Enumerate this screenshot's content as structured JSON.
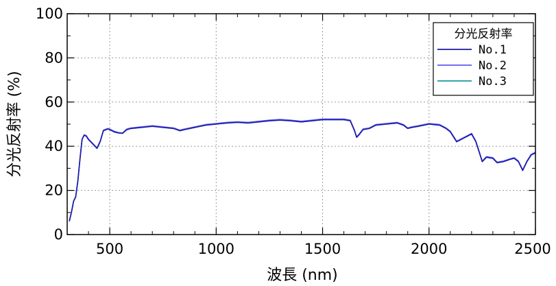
{
  "chart_data": {
    "type": "line",
    "xlabel": "波長 (nm)",
    "ylabel": "分光反射率 (%)",
    "xlim": [
      300,
      2500
    ],
    "ylim": [
      0,
      100
    ],
    "x_ticks": [
      500,
      1000,
      1500,
      2000,
      2500
    ],
    "y_ticks": [
      0,
      20,
      40,
      60,
      80,
      100
    ],
    "grid": true,
    "legend": {
      "title": "分光反射率",
      "placement": "top-right"
    },
    "x": [
      310,
      320,
      330,
      340,
      350,
      360,
      370,
      380,
      390,
      400,
      420,
      440,
      455,
      470,
      490,
      500,
      520,
      540,
      560,
      580,
      600,
      650,
      700,
      750,
      800,
      830,
      850,
      900,
      950,
      1000,
      1050,
      1100,
      1150,
      1200,
      1250,
      1300,
      1350,
      1400,
      1450,
      1500,
      1550,
      1600,
      1630,
      1650,
      1660,
      1670,
      1690,
      1720,
      1750,
      1800,
      1850,
      1880,
      1900,
      1920,
      1950,
      2000,
      2050,
      2080,
      2100,
      2130,
      2170,
      2200,
      2220,
      2250,
      2270,
      2300,
      2320,
      2350,
      2380,
      2400,
      2420,
      2440,
      2460,
      2480,
      2500
    ],
    "series": [
      {
        "name": "No.1",
        "color": "#1a1aa6",
        "values": [
          6,
          10,
          15,
          17,
          24,
          34,
          43,
          45,
          44.5,
          43,
          41,
          39,
          42,
          47,
          47.8,
          47.5,
          46.5,
          46,
          45.8,
          47.5,
          48,
          48.5,
          49,
          48.5,
          48,
          47,
          47.5,
          48.5,
          49.5,
          50,
          50.5,
          50.8,
          50.5,
          51,
          51.5,
          51.8,
          51.5,
          51,
          51.5,
          52,
          52,
          52,
          51.5,
          47,
          44,
          45,
          47.5,
          48,
          49.5,
          50,
          50.5,
          49.5,
          48,
          48.5,
          49,
          50,
          49.5,
          48,
          46.5,
          42,
          44,
          45.5,
          42,
          33,
          35,
          34.5,
          32.5,
          33,
          34,
          34.5,
          33,
          29,
          33,
          36,
          37
        ]
      },
      {
        "name": "No.2",
        "color": "#5b5bf0",
        "values": [
          6.2,
          10.2,
          15.2,
          17.3,
          24.3,
          34.2,
          43.2,
          45.2,
          44.8,
          43.3,
          41.3,
          39.3,
          42.3,
          47.3,
          48,
          47.8,
          46.8,
          46.2,
          46,
          47.8,
          48.3,
          48.8,
          49.3,
          48.8,
          48.3,
          47.3,
          47.8,
          48.8,
          49.8,
          50.3,
          50.8,
          51.1,
          50.8,
          51.3,
          51.8,
          52.1,
          51.8,
          51.3,
          51.8,
          52.3,
          52.3,
          52.3,
          51.8,
          47.3,
          44.3,
          45.3,
          47.8,
          48.3,
          49.8,
          50.3,
          50.8,
          49.8,
          48.3,
          48.8,
          49.3,
          50.3,
          49.8,
          48.3,
          46.8,
          42.3,
          44.3,
          45.8,
          42.3,
          33.3,
          35.3,
          34.8,
          32.8,
          33.3,
          34.3,
          34.8,
          33.3,
          29.3,
          33.3,
          36.3,
          37.3
        ]
      },
      {
        "name": "No.3",
        "color": "#1a9a9a",
        "values": [
          6.1,
          10.1,
          15.1,
          17.1,
          24.1,
          34.1,
          43.1,
          45.1,
          44.6,
          43.1,
          41.1,
          39.1,
          42.1,
          47.1,
          47.9,
          47.6,
          46.6,
          46.1,
          45.9,
          47.6,
          48.1,
          48.6,
          49.1,
          48.6,
          48.1,
          47.1,
          47.6,
          48.6,
          49.6,
          50.1,
          50.6,
          50.9,
          50.6,
          51.1,
          51.6,
          51.9,
          51.6,
          51.1,
          51.6,
          52.1,
          52.1,
          52.1,
          51.6,
          47.1,
          44.1,
          45.1,
          47.6,
          48.1,
          49.6,
          50.1,
          50.6,
          49.6,
          48.1,
          48.6,
          49.1,
          50.1,
          49.6,
          48.1,
          46.6,
          42.1,
          44.1,
          45.6,
          42.1,
          33.1,
          35.1,
          34.6,
          32.6,
          33.1,
          34.1,
          34.6,
          33.1,
          29.1,
          33.1,
          36.1,
          37.1
        ]
      }
    ]
  }
}
